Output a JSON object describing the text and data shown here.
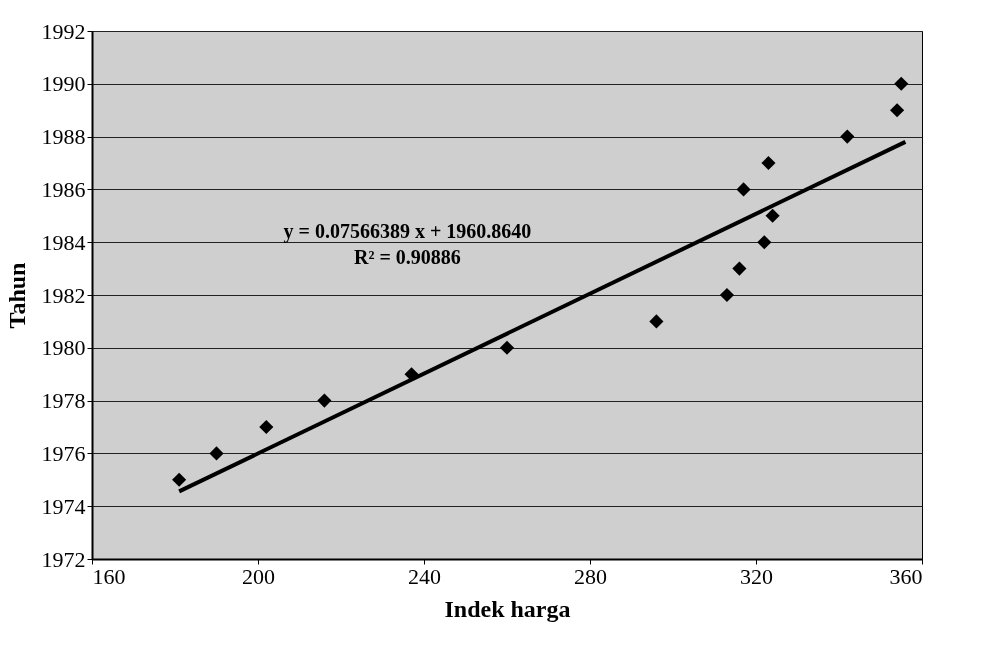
{
  "chart_data": {
    "type": "scatter",
    "xlabel": "Indek harga",
    "ylabel": "Tahun",
    "xlim": [
      160,
      360
    ],
    "xticks": [
      160,
      200,
      240,
      280,
      320,
      360
    ],
    "ylim": [
      1972,
      1992
    ],
    "yticks": [
      1972,
      1974,
      1976,
      1978,
      1980,
      1982,
      1984,
      1986,
      1988,
      1990,
      1992
    ],
    "grid": "y",
    "annotations": [
      "y = 0.07566389 x + 1960.8640",
      "R² = 0.90886"
    ],
    "series": [
      {
        "marker": "diamond",
        "color": "#000000",
        "x": [
          181,
          190,
          202,
          216,
          237,
          260,
          296,
          313,
          316,
          322,
          324,
          317,
          323,
          342,
          354,
          355
        ],
        "values": [
          1975,
          1976,
          1977,
          1978,
          1979,
          1980,
          1981,
          1982,
          1983,
          1984,
          1985,
          1986,
          1987,
          1988,
          1989,
          1990
        ]
      },
      {
        "type": "line",
        "color": "#000000",
        "x": [
          181,
          356
        ],
        "values": [
          1974.56,
          1987.8
        ]
      }
    ]
  }
}
